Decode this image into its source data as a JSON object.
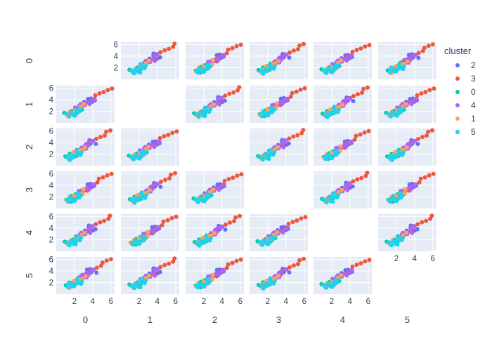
{
  "chart_data": {
    "type": "scatter",
    "layout": "scatter-matrix",
    "dimensions": [
      "0",
      "1",
      "2",
      "3",
      "4",
      "5"
    ],
    "axis_range": [
      0,
      6.4
    ],
    "ticks": [
      2,
      4,
      6
    ],
    "grid": true,
    "diagonal_visible": false,
    "legend": {
      "title": "cluster",
      "position": "right",
      "entries": [
        {
          "name": "2",
          "color": "#636efa"
        },
        {
          "name": "3",
          "color": "#EF553B"
        },
        {
          "name": "0",
          "color": "#00cc96"
        },
        {
          "name": "4",
          "color": "#ab63fa"
        },
        {
          "name": "1",
          "color": "#FFA15A"
        },
        {
          "name": "5",
          "color": "#19d3f3"
        }
      ]
    },
    "series": [
      {
        "name": "2",
        "color": "#636efa",
        "points": [
          [
            3.5,
            4.1
          ],
          [
            3.9,
            3.7
          ],
          [
            3.7,
            4.3
          ],
          [
            3.2,
            3.5
          ],
          [
            4.3,
            3.8
          ],
          [
            3.6,
            3.9
          ]
        ]
      },
      {
        "name": "3",
        "color": "#EF553B",
        "points": [
          [
            3.6,
            3.7
          ],
          [
            4.0,
            4.2
          ],
          [
            4.4,
            4.6
          ],
          [
            4.8,
            5.0
          ],
          [
            5.2,
            5.3
          ],
          [
            5.6,
            5.7
          ],
          [
            6.0,
            6.0
          ],
          [
            3.3,
            3.2
          ],
          [
            2.9,
            3.0
          ],
          [
            2.6,
            2.7
          ]
        ]
      },
      {
        "name": "0",
        "color": "#00cc96",
        "points": [
          [
            1.2,
            1.4
          ],
          [
            1.5,
            1.3
          ],
          [
            1.8,
            2.0
          ],
          [
            2.1,
            1.8
          ],
          [
            2.4,
            2.6
          ],
          [
            2.7,
            2.4
          ],
          [
            1.0,
            1.6
          ],
          [
            2.2,
            2.3
          ],
          [
            2.8,
            2.9
          ],
          [
            1.6,
            1.9
          ]
        ]
      },
      {
        "name": "4",
        "color": "#ab63fa",
        "points": [
          [
            2.2,
            2.5
          ],
          [
            2.6,
            2.9
          ],
          [
            3.0,
            3.2
          ],
          [
            3.4,
            3.6
          ],
          [
            3.8,
            4.0
          ],
          [
            2.8,
            3.1
          ],
          [
            3.2,
            3.0
          ],
          [
            2.4,
            2.2
          ],
          [
            3.6,
            3.3
          ],
          [
            4.1,
            4.2
          ]
        ]
      },
      {
        "name": "1",
        "color": "#FFA15A",
        "points": [
          [
            1.3,
            1.2
          ],
          [
            1.7,
            1.6
          ],
          [
            2.0,
            2.2
          ],
          [
            2.4,
            2.3
          ],
          [
            2.8,
            2.7
          ],
          [
            3.1,
            3.2
          ],
          [
            1.5,
            1.9
          ],
          [
            2.6,
            2.5
          ],
          [
            2.2,
            1.8
          ],
          [
            1.9,
            1.4
          ]
        ]
      },
      {
        "name": "5",
        "color": "#19d3f3",
        "points": [
          [
            1.4,
            1.1
          ],
          [
            1.8,
            1.4
          ],
          [
            2.1,
            1.7
          ],
          [
            2.4,
            2.0
          ],
          [
            2.7,
            2.3
          ],
          [
            1.6,
            1.8
          ],
          [
            2.0,
            1.3
          ],
          [
            2.3,
            2.5
          ],
          [
            1.2,
            1.5
          ],
          [
            2.6,
            1.9
          ]
        ]
      }
    ]
  }
}
